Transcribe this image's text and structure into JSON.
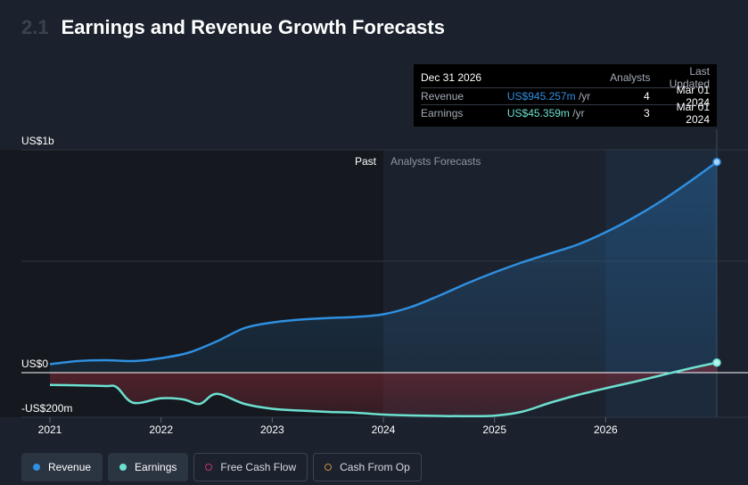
{
  "header": {
    "section_number": "2.1",
    "title": "Earnings and Revenue Growth Forecasts"
  },
  "tooltip": {
    "date": "Dec 31 2026",
    "col_analysts": "Analysts",
    "col_updated": "Last Updated",
    "rows": [
      {
        "label": "Revenue",
        "value": "US$945.257m",
        "unit": "/yr",
        "analysts": "4",
        "updated": "Mar 01 2024"
      },
      {
        "label": "Earnings",
        "value": "US$45.359m",
        "unit": "/yr",
        "analysts": "3",
        "updated": "Mar 01 2024"
      }
    ]
  },
  "legend": [
    {
      "label": "Revenue",
      "active": true,
      "color": "#2f8fe0"
    },
    {
      "label": "Earnings",
      "active": true,
      "color": "#6ce0d0"
    },
    {
      "label": "Free Cash Flow",
      "active": false,
      "color": "#c2336e"
    },
    {
      "label": "Cash From Op",
      "active": false,
      "color": "#c98a44"
    }
  ],
  "chart_data": {
    "type": "line",
    "title": "",
    "y_tick_labels": [
      {
        "value": 1000,
        "label": "US$1b"
      },
      {
        "value": 0,
        "label": "US$0"
      },
      {
        "value": -200,
        "label": "-US$200m"
      }
    ],
    "x_ticks": [
      {
        "value": 2021,
        "label": "2021"
      },
      {
        "value": 2022,
        "label": "2022"
      },
      {
        "value": 2023,
        "label": "2023"
      },
      {
        "value": 2024,
        "label": "2024"
      },
      {
        "value": 2025,
        "label": "2025"
      },
      {
        "value": 2026,
        "label": "2026"
      }
    ],
    "xlim": [
      2021,
      2027.4
    ],
    "ylim": [
      -200,
      1000
    ],
    "past_label": "Past",
    "forecast_label": "Analysts Forecasts",
    "forecast_start": 2024,
    "highlight_start": 2026,
    "highlight_end": 2027,
    "grid": true,
    "legend_position": "bottom",
    "colors": {
      "revenue": "#2f8fe0",
      "earnings": "#6ce0d0",
      "negative_fill": "#7a2530",
      "past_bg": "#15191f"
    },
    "series": [
      {
        "name": "Revenue",
        "x": [
          2021,
          2021.25,
          2021.5,
          2021.75,
          2022,
          2022.25,
          2022.5,
          2022.75,
          2023,
          2023.25,
          2023.5,
          2023.75,
          2024,
          2024.25,
          2024.5,
          2024.75,
          2025,
          2025.25,
          2025.5,
          2025.75,
          2026,
          2026.25,
          2026.5,
          2026.75,
          2027
        ],
        "y": [
          38,
          52,
          56,
          52,
          65,
          90,
          140,
          200,
          225,
          238,
          245,
          250,
          262,
          295,
          345,
          400,
          450,
          495,
          535,
          575,
          630,
          695,
          770,
          855,
          945
        ]
      },
      {
        "name": "Earnings",
        "x": [
          2021,
          2021.25,
          2021.5,
          2021.6,
          2021.75,
          2022,
          2022.2,
          2022.35,
          2022.5,
          2022.75,
          2023,
          2023.25,
          2023.5,
          2023.75,
          2024,
          2024.25,
          2024.5,
          2024.75,
          2025,
          2025.25,
          2025.5,
          2025.75,
          2026,
          2026.25,
          2026.5,
          2026.75,
          2027
        ],
        "y": [
          -55,
          -57,
          -60,
          -65,
          -135,
          -115,
          -120,
          -140,
          -95,
          -140,
          -162,
          -170,
          -176,
          -180,
          -188,
          -192,
          -194,
          -195,
          -193,
          -175,
          -135,
          -100,
          -70,
          -42,
          -12,
          18,
          45
        ]
      }
    ]
  }
}
